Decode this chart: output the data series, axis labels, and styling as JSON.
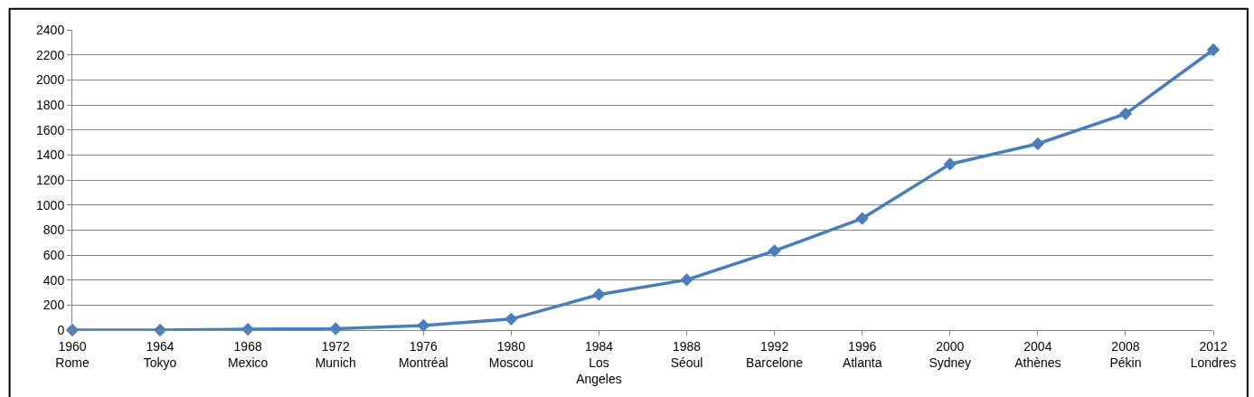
{
  "chart_data": {
    "type": "line",
    "categories": [
      "1960\nRome",
      "1964\nTokyo",
      "1968\nMexico",
      "1972\nMunich",
      "1976\nMontréal",
      "1980\nMoscou",
      "1984\nLos\nAngeles",
      "1988\nSéoul",
      "1992\nBarcelone",
      "1996\nAtlanta",
      "2000\nSydney",
      "2004\nAthènes",
      "2008\nPékin",
      "2012\nLondres"
    ],
    "series": [
      {
        "color": "#4a7ebb",
        "values": [
          0,
          0,
          7,
          11,
          37,
          88,
          284,
          402,
          634,
          892,
          1327,
          1489,
          1729,
          2241
        ]
      }
    ],
    "ylim": [
      0,
      2400
    ],
    "yticks": [
      0,
      200,
      400,
      600,
      800,
      1000,
      1200,
      1400,
      1600,
      1800,
      2000,
      2200,
      2400
    ],
    "grid": "y",
    "marker": "diamond",
    "line_style": "solid"
  }
}
